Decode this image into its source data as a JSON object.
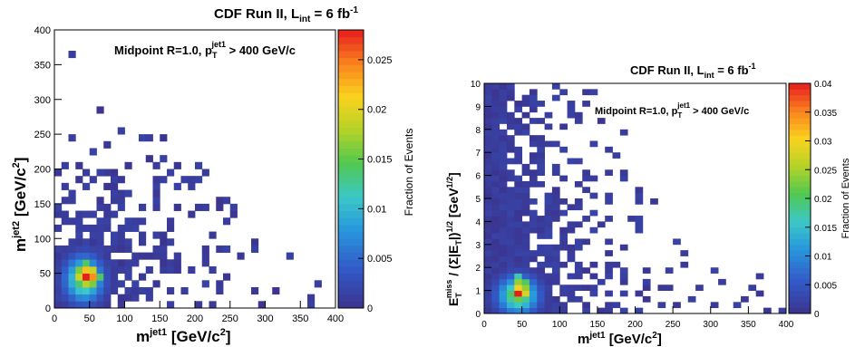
{
  "chart_data": [
    {
      "type": "heatmap",
      "title": {
        "main": "CDF Run II, L",
        "sub": "int",
        "mid": " = 6 fb",
        "sup": "-1"
      },
      "annotation": {
        "main": "Midpoint R=1.0, p",
        "sub": "T",
        "sup": "jet1",
        "tail": " > 400 GeV/c"
      },
      "xlabel": {
        "main": "m",
        "sup": "jet1",
        "tail": " [GeV/c",
        "sup2": "2",
        "end": "]"
      },
      "ylabel": {
        "main": "m",
        "sup": "jet2",
        "tail": " [GeV/c",
        "sup2": "2",
        "end": "]"
      },
      "xlim": [
        0,
        400
      ],
      "ylim": [
        0,
        400
      ],
      "bin_size": [
        10,
        10
      ],
      "xticks": [
        "0",
        "50",
        "100",
        "150",
        "200",
        "250",
        "300",
        "350",
        "400"
      ],
      "yticks": [
        "0",
        "50",
        "100",
        "150",
        "200",
        "250",
        "300",
        "350",
        "400"
      ],
      "colorbar": {
        "label": "Fraction of Events",
        "range": [
          0,
          0.028
        ],
        "ticks": [
          "0",
          "0.005",
          "0.01",
          "0.015",
          "0.02",
          "0.025"
        ],
        "tick_values": [
          0,
          0.005,
          0.01,
          0.015,
          0.02,
          0.025
        ]
      },
      "peak": {
        "x": 42,
        "y": 42,
        "value": 0.028
      },
      "hot_bins": [
        {
          "x": 40,
          "y": 40,
          "v": 0.028
        },
        {
          "x": 50,
          "y": 40,
          "v": 0.024
        },
        {
          "x": 40,
          "y": 50,
          "v": 0.022
        },
        {
          "x": 30,
          "y": 40,
          "v": 0.019
        },
        {
          "x": 50,
          "y": 50,
          "v": 0.019
        },
        {
          "x": 40,
          "y": 30,
          "v": 0.018
        },
        {
          "x": 30,
          "y": 50,
          "v": 0.016
        },
        {
          "x": 50,
          "y": 30,
          "v": 0.016
        },
        {
          "x": 60,
          "y": 40,
          "v": 0.014
        },
        {
          "x": 40,
          "y": 60,
          "v": 0.014
        }
      ]
    },
    {
      "type": "heatmap",
      "title": {
        "main": "CDF Run II, L",
        "sub": "int",
        "mid": " = 6 fb",
        "sup": "-1"
      },
      "annotation": {
        "main": "Midpoint R=1.0, p",
        "sub": "T",
        "sup": "jet1",
        "tail": " > 400 GeV/c"
      },
      "xlabel": {
        "main": "m",
        "sup": "jet1",
        "tail": " [GeV/c",
        "sup2": "2",
        "end": "]"
      },
      "ylabel": {
        "e": "E",
        "esub": "T",
        "esup": "miss",
        "mid": " / (Σ|E",
        "sub2": "T",
        "mid2": "|)",
        "sup2": "1/2",
        "tail": " [GeV",
        "sup3": "1/2",
        "end": "]"
      },
      "xlim": [
        0,
        400
      ],
      "ylim": [
        0,
        10
      ],
      "bin_size": [
        10,
        0.25
      ],
      "xticks": [
        "0",
        "50",
        "100",
        "150",
        "200",
        "250",
        "300",
        "350",
        "400"
      ],
      "yticks": [
        "0",
        "1",
        "2",
        "3",
        "4",
        "5",
        "6",
        "7",
        "8",
        "9",
        "10"
      ],
      "colorbar": {
        "label": "Fraction of Events",
        "range": [
          0,
          0.04
        ],
        "ticks": [
          "0",
          "0.005",
          "0.01",
          "0.015",
          "0.02",
          "0.025",
          "0.03",
          "0.035",
          "0.04"
        ],
        "tick_values": [
          0,
          0.005,
          0.01,
          0.015,
          0.02,
          0.025,
          0.03,
          0.035,
          0.04
        ]
      },
      "peak": {
        "x": 45,
        "y": 0.8,
        "value": 0.04
      },
      "hot_bins": [
        {
          "x": 40,
          "y": 0.75,
          "v": 0.04
        },
        {
          "x": 40,
          "y": 1.0,
          "v": 0.03
        },
        {
          "x": 50,
          "y": 0.75,
          "v": 0.028
        },
        {
          "x": 40,
          "y": 1.25,
          "v": 0.024
        },
        {
          "x": 50,
          "y": 1.0,
          "v": 0.024
        },
        {
          "x": 40,
          "y": 0.5,
          "v": 0.022
        },
        {
          "x": 30,
          "y": 0.75,
          "v": 0.02
        },
        {
          "x": 50,
          "y": 1.25,
          "v": 0.02
        },
        {
          "x": 40,
          "y": 1.5,
          "v": 0.017
        }
      ]
    }
  ]
}
